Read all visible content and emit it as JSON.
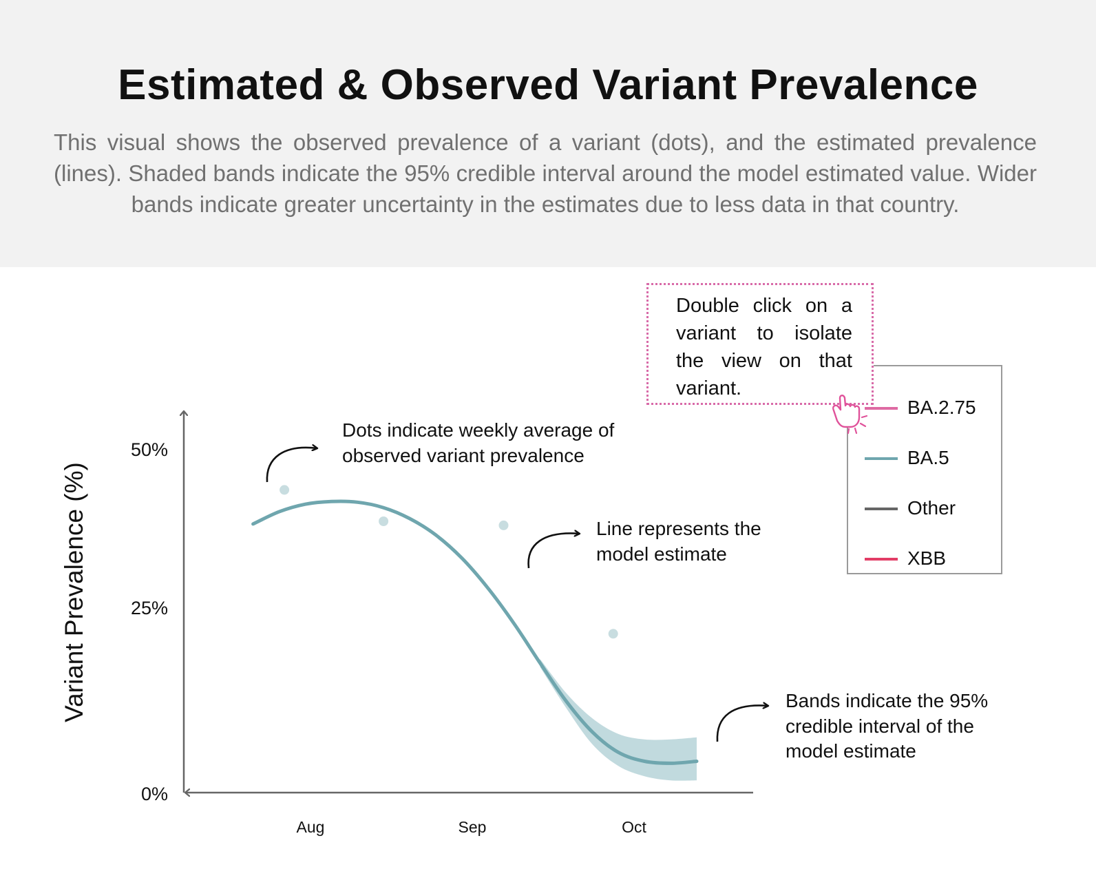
{
  "header": {
    "title": "Estimated & Observed Variant Prevalence",
    "description": "This visual shows the observed prevalence of a variant (dots), and the estimated prevalence (lines). Shaded bands indicate the 95% credible interval around the model estimated value. Wider bands indicate greater uncertainty in the estimates due to less data in that country."
  },
  "tooltip": {
    "text": "Double click on a variant to isolate the view on that variant.",
    "border_color": "#d86aa8",
    "icon": "hand-pointer-icon"
  },
  "legend": {
    "items": [
      {
        "label": "BA.2.75",
        "color": "#de6aa3"
      },
      {
        "label": "BA.5",
        "color": "#6fa6ae"
      },
      {
        "label": "Other",
        "color": "#666666"
      },
      {
        "label": "XBB",
        "color": "#e23d66"
      }
    ]
  },
  "annotations": {
    "dots": "Dots indicate weekly average of observed variant prevalence",
    "line": "Line represents the model estimate",
    "bands": "Bands indicate the 95% credible interval of the model estimate"
  },
  "chart_data": {
    "type": "line",
    "title": "Estimated & Observed Variant Prevalence",
    "xlabel": "",
    "ylabel": "Variant Prevalence (%)",
    "y_unit": "%",
    "ylim": [
      0,
      55
    ],
    "yticks": [
      0,
      25,
      50
    ],
    "ytick_labels": [
      "0%",
      "25%",
      "50%"
    ],
    "xticks": [
      "Aug",
      "Sep",
      "Oct"
    ],
    "grid": false,
    "legend_position": "top-right",
    "series": [
      {
        "name": "BA.5",
        "color": "#6fa6ae",
        "band_color": "#b6d3d8",
        "estimate": [
          {
            "x": "2022-07-21",
            "y": 39.4
          },
          {
            "x": "2022-07-26",
            "y": 41.2
          },
          {
            "x": "2022-07-31",
            "y": 42.3
          },
          {
            "x": "2022-08-05",
            "y": 42.7
          },
          {
            "x": "2022-08-10",
            "y": 42.6
          },
          {
            "x": "2022-08-15",
            "y": 41.8
          },
          {
            "x": "2022-08-20",
            "y": 40.2
          },
          {
            "x": "2022-08-25",
            "y": 37.8
          },
          {
            "x": "2022-08-30",
            "y": 34.4
          },
          {
            "x": "2022-09-04",
            "y": 30.0
          },
          {
            "x": "2022-09-09",
            "y": 24.8
          },
          {
            "x": "2022-09-14",
            "y": 19.0
          },
          {
            "x": "2022-09-19",
            "y": 13.4
          },
          {
            "x": "2022-09-24",
            "y": 8.9
          },
          {
            "x": "2022-09-29",
            "y": 5.9
          },
          {
            "x": "2022-10-04",
            "y": 4.6
          },
          {
            "x": "2022-10-09",
            "y": 4.3
          },
          {
            "x": "2022-10-14",
            "y": 4.6
          }
        ],
        "band": [
          {
            "x": "2022-09-14",
            "low": 18.4,
            "high": 19.6
          },
          {
            "x": "2022-09-19",
            "low": 12.4,
            "high": 14.6
          },
          {
            "x": "2022-09-24",
            "low": 7.1,
            "high": 10.9
          },
          {
            "x": "2022-09-29",
            "low": 3.9,
            "high": 8.6
          },
          {
            "x": "2022-10-04",
            "low": 2.4,
            "high": 7.8
          },
          {
            "x": "2022-10-09",
            "low": 1.8,
            "high": 7.8
          },
          {
            "x": "2022-10-14",
            "low": 1.8,
            "high": 8.1
          }
        ],
        "observed": [
          {
            "x": "2022-07-27",
            "y": 44.4
          },
          {
            "x": "2022-08-15",
            "y": 39.8
          },
          {
            "x": "2022-09-07",
            "y": 39.2
          },
          {
            "x": "2022-09-28",
            "y": 23.3
          }
        ]
      }
    ]
  }
}
